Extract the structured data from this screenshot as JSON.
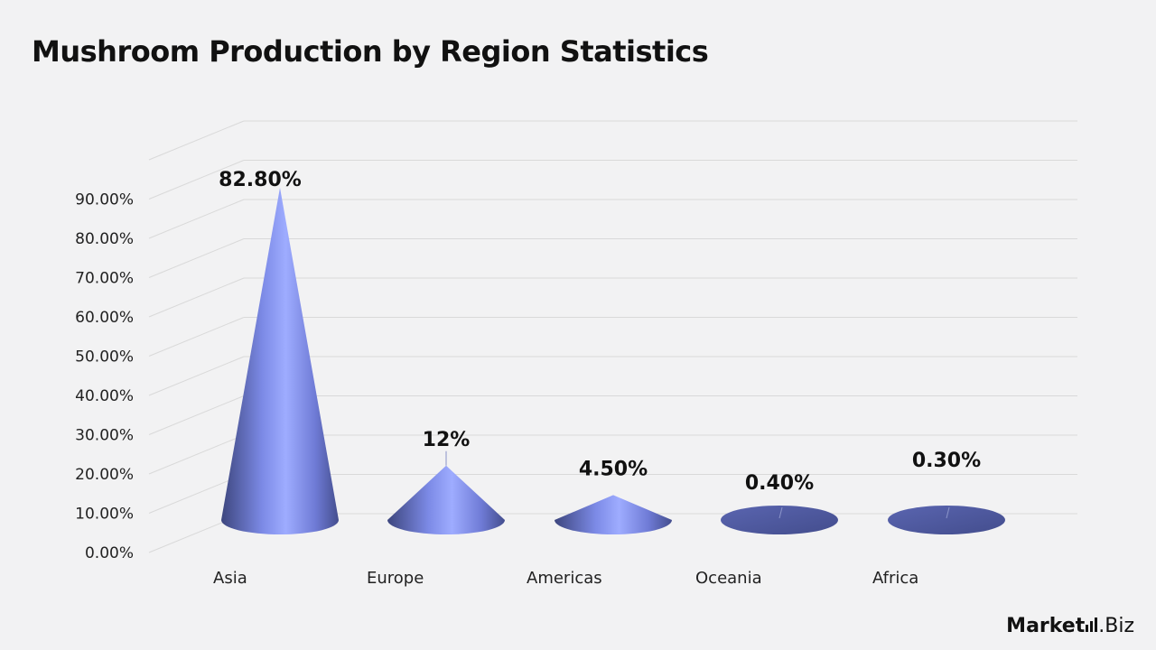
{
  "title": "Mushroom Production by Region Statistics",
  "brand": {
    "part1": "Market",
    "part2": ".Biz"
  },
  "colors": {
    "cone_light": "#9aa8ff",
    "cone_dark": "#4a5496",
    "grid": "#d9d9d9",
    "text": "#222222"
  },
  "chart_data": {
    "type": "bar",
    "style": "3d-cone",
    "categories": [
      "Asia",
      "Europe",
      "Americas",
      "Oceania",
      "Africa"
    ],
    "values": [
      82.8,
      12,
      4.5,
      0.4,
      0.3
    ],
    "data_labels": [
      "82.80%",
      "12%",
      "4.50%",
      "0.40%",
      "0.30%"
    ],
    "yticks": [
      "0.00%",
      "10.00%",
      "20.00%",
      "30.00%",
      "40.00%",
      "50.00%",
      "60.00%",
      "70.00%",
      "80.00%",
      "90.00%"
    ],
    "ylim": [
      0,
      100
    ],
    "grid": true,
    "legend": "none",
    "title": "Mushroom Production by Region Statistics",
    "xlabel": "",
    "ylabel": ""
  }
}
